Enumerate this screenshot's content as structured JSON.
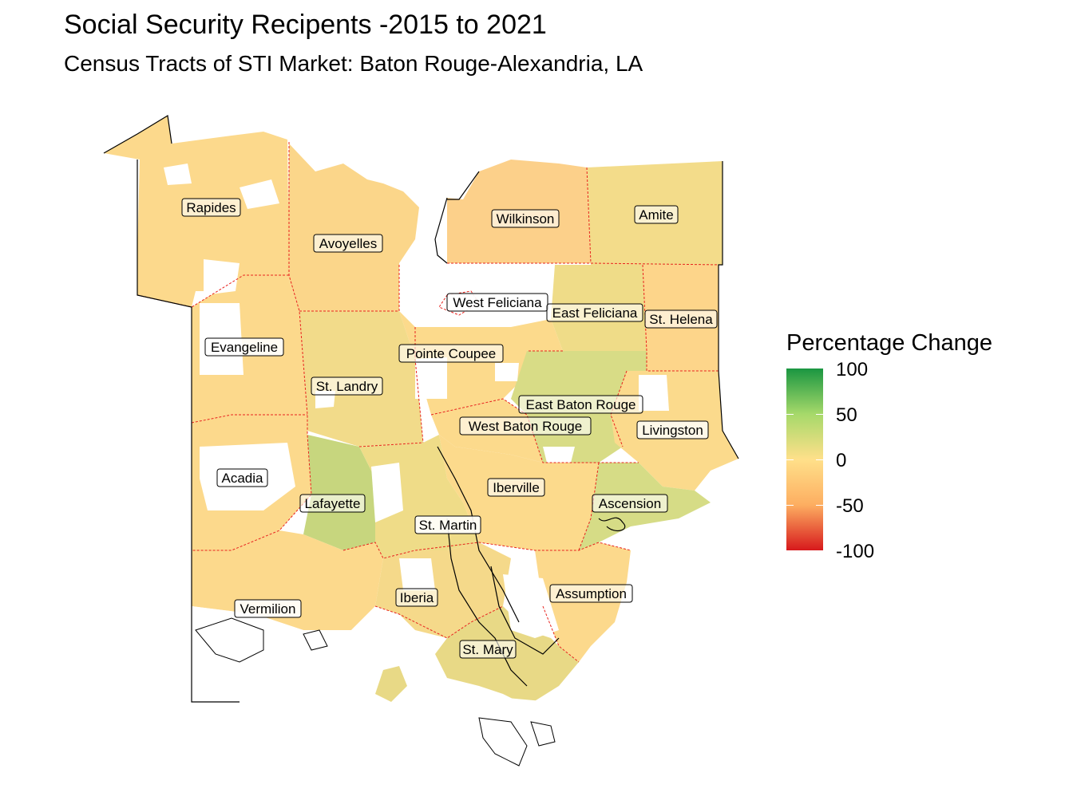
{
  "title": "Social Security Recipents -2015 to 2021",
  "subtitle": "Census Tracts of STI Market: Baton Rouge-Alexandria, LA",
  "legend": {
    "title": "Percentage Change",
    "ticks": [
      "100",
      "50",
      "0",
      "-50",
      "-100"
    ],
    "colors": {
      "high": "#1a9641",
      "mid_high": "#a6d96a",
      "mid": "#ffe08a",
      "mid_low": "#fdae61",
      "low": "#d7191c"
    }
  },
  "parishes": [
    {
      "name": "Rapides",
      "color": "#fcd98c"
    },
    {
      "name": "Avoyelles",
      "color": "#fbd68a"
    },
    {
      "name": "Wilkinson",
      "color": "#fcd08a"
    },
    {
      "name": "Amite",
      "color": "#f3dc8a"
    },
    {
      "name": "West Feliciana",
      "color": "#ffffff"
    },
    {
      "name": "East Feliciana",
      "color": "#efdc88"
    },
    {
      "name": "St. Helena",
      "color": "#fdd58a"
    },
    {
      "name": "Evangeline",
      "color": "#fcd98c"
    },
    {
      "name": "Pointe Coupee",
      "color": "#fcda8c"
    },
    {
      "name": "St. Landry",
      "color": "#f2db8a"
    },
    {
      "name": "East Baton Rouge",
      "color": "#d8dc86"
    },
    {
      "name": "West Baton Rouge",
      "color": "#fcda8c"
    },
    {
      "name": "Livingston",
      "color": "#fbda8c"
    },
    {
      "name": "Acadia",
      "color": "#fcd98c"
    },
    {
      "name": "Lafayette",
      "color": "#c7d67e"
    },
    {
      "name": "Iberville",
      "color": "#fcda8c"
    },
    {
      "name": "Ascension",
      "color": "#d6dc86"
    },
    {
      "name": "St. Martin",
      "color": "#efdc88"
    },
    {
      "name": "Vermilion",
      "color": "#fcd98c"
    },
    {
      "name": "Iberia",
      "color": "#f5d98a"
    },
    {
      "name": "Assumption",
      "color": "#fcd98c"
    },
    {
      "name": "St. Mary",
      "color": "#e8d986"
    }
  ]
}
